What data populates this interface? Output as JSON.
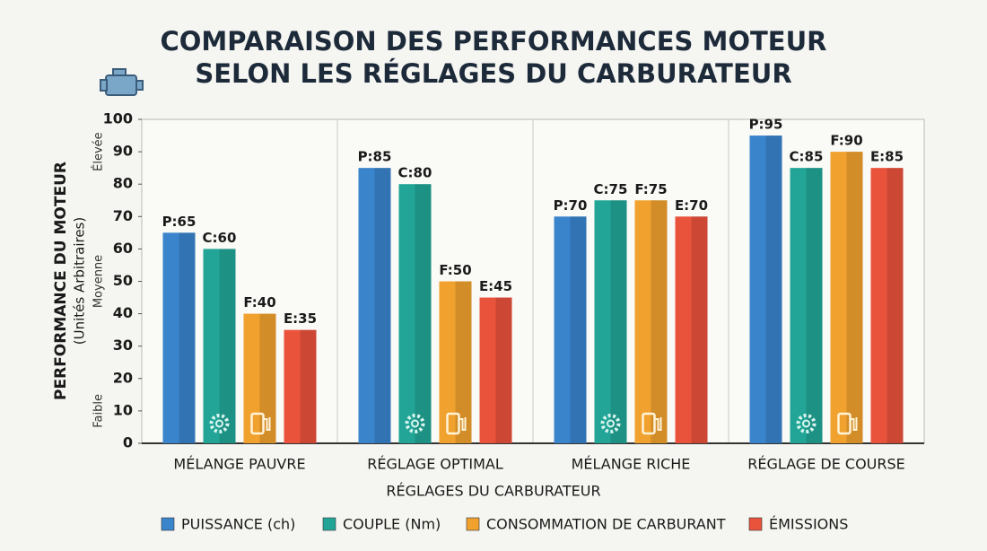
{
  "chart_data": {
    "type": "bar",
    "title": [
      "COMPARAISON DES PERFORMANCES MOTEUR",
      "SELON LES RÉGLAGES DU CARBURATEUR"
    ],
    "y_label": "PERFORMANCE DU MOTEUR",
    "y_sublabel": "(Unités Arbitraires)",
    "x_label": "RÉGLAGES DU CARBURATEUR",
    "y_annotations": [
      {
        "text": "Élevée",
        "value": 90
      },
      {
        "text": "Moyenne",
        "value": 50
      },
      {
        "text": "Faible",
        "value": 10
      }
    ],
    "categories": [
      "MÉLANGE PAUVRE",
      "RÉGLAGE OPTIMAL",
      "MÉLANGE RICHE",
      "RÉGLAGE DE COURSE"
    ],
    "series": [
      {
        "name": "PUISSANCE (ch)",
        "color": "#3a84cc",
        "values": [
          65,
          85,
          70,
          95
        ],
        "value_labels": [
          "P:65",
          "P:85",
          "P:70",
          "P:95"
        ]
      },
      {
        "name": "COUPLE (Nm)",
        "color": "#22a596",
        "values": [
          60,
          80,
          75,
          85
        ],
        "value_labels": [
          "C:60",
          "C:80",
          "C:75",
          "C:85"
        ]
      },
      {
        "name": "CONSOMMATION DE CARBURANT",
        "color": "#f0a12e",
        "values": [
          40,
          50,
          75,
          90
        ],
        "value_labels": [
          "F:40",
          "F:50",
          "F:75",
          "F:90"
        ]
      },
      {
        "name": "ÉMISSIONS",
        "color": "#e9533c",
        "values": [
          35,
          45,
          70,
          85
        ],
        "value_labels": [
          "E:35",
          "E:45",
          "E:70",
          "E:85"
        ]
      }
    ],
    "ylim": [
      0,
      100
    ],
    "yticks": [
      0,
      10,
      20,
      30,
      40,
      50,
      60,
      70,
      80,
      90,
      100
    ],
    "grid": false,
    "legend": "bottom"
  }
}
